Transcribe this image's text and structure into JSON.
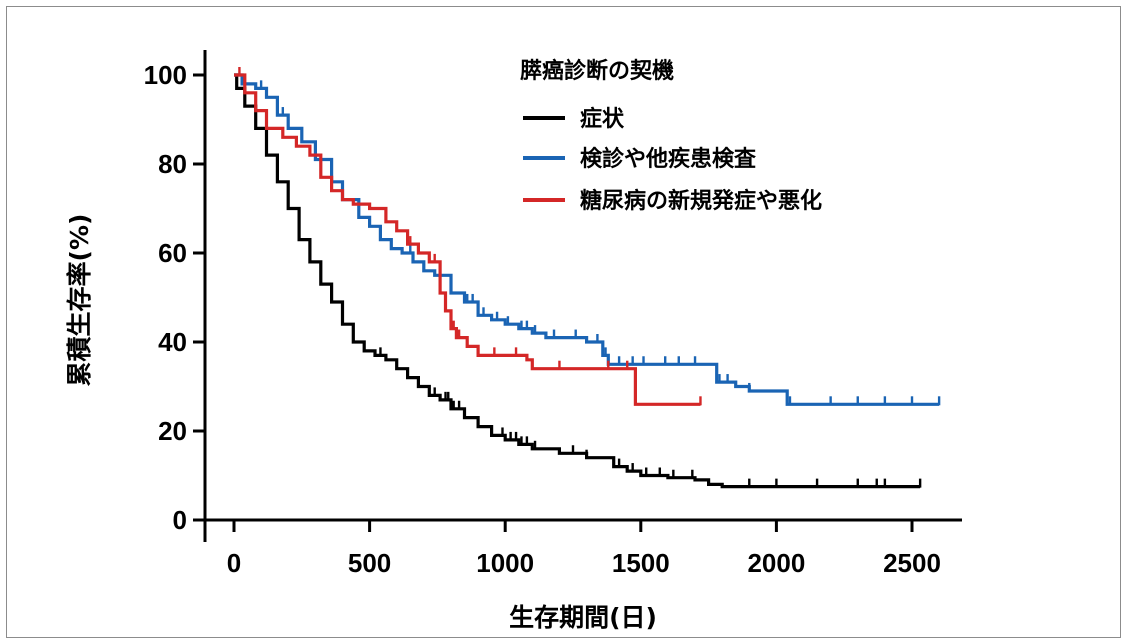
{
  "chart_data": {
    "type": "line",
    "subtype": "kaplan-meier survival curve",
    "xlabel": "生存期間(日)",
    "ylabel": "累積生存率(%)",
    "xlim": [
      -60,
      2680
    ],
    "ylim": [
      0,
      105
    ],
    "x_ticks": [
      0,
      500,
      1000,
      1500,
      2000,
      2500
    ],
    "y_ticks": [
      0,
      20,
      40,
      60,
      80,
      100
    ],
    "x_tick_labels": [
      "0",
      "500",
      "1000",
      "1500",
      "2000",
      "2500"
    ],
    "y_tick_labels": [
      "0",
      "20",
      "40",
      "60",
      "80",
      "100"
    ],
    "grid": false,
    "legend": {
      "title": "膵癌診断の契機",
      "position": "top-right"
    },
    "series": [
      {
        "name": "症状",
        "color": "#000000",
        "points": [
          [
            0,
            100
          ],
          [
            10,
            97
          ],
          [
            40,
            93
          ],
          [
            80,
            88
          ],
          [
            120,
            82
          ],
          [
            160,
            76
          ],
          [
            200,
            70
          ],
          [
            240,
            63
          ],
          [
            280,
            58
          ],
          [
            320,
            53
          ],
          [
            360,
            49
          ],
          [
            400,
            44
          ],
          [
            440,
            40
          ],
          [
            480,
            38
          ],
          [
            520,
            37
          ],
          [
            560,
            36
          ],
          [
            600,
            34
          ],
          [
            640,
            32
          ],
          [
            680,
            30
          ],
          [
            720,
            28
          ],
          [
            760,
            27
          ],
          [
            800,
            25
          ],
          [
            850,
            23
          ],
          [
            900,
            21
          ],
          [
            950,
            19
          ],
          [
            1000,
            18
          ],
          [
            1050,
            17
          ],
          [
            1100,
            16
          ],
          [
            1200,
            15
          ],
          [
            1300,
            14
          ],
          [
            1400,
            12
          ],
          [
            1450,
            11
          ],
          [
            1500,
            10
          ],
          [
            1600,
            9.5
          ],
          [
            1700,
            9
          ],
          [
            1750,
            8
          ],
          [
            1800,
            7.5
          ],
          [
            2000,
            7.5
          ],
          [
            2300,
            7.5
          ],
          [
            2530,
            7.5
          ]
        ],
        "censor_x": [
          540,
          740,
          780,
          790,
          810,
          830,
          990,
          1020,
          1040,
          1060,
          1080,
          1110,
          1250,
          1300,
          1420,
          1470,
          1520,
          1570,
          1620,
          1690,
          1900,
          2000,
          2150,
          2300,
          2370,
          2400,
          2530
        ]
      },
      {
        "name": "検診や他疾患検査",
        "color": "#1a64b4",
        "points": [
          [
            0,
            100
          ],
          [
            30,
            98
          ],
          [
            80,
            97
          ],
          [
            120,
            95
          ],
          [
            160,
            91
          ],
          [
            200,
            88
          ],
          [
            250,
            85
          ],
          [
            300,
            81
          ],
          [
            360,
            76
          ],
          [
            400,
            72
          ],
          [
            460,
            68
          ],
          [
            500,
            66
          ],
          [
            540,
            63
          ],
          [
            580,
            61
          ],
          [
            620,
            60
          ],
          [
            660,
            58
          ],
          [
            700,
            56
          ],
          [
            740,
            55
          ],
          [
            800,
            51
          ],
          [
            850,
            49
          ],
          [
            900,
            46
          ],
          [
            950,
            45
          ],
          [
            1000,
            44
          ],
          [
            1050,
            43
          ],
          [
            1100,
            42
          ],
          [
            1150,
            41
          ],
          [
            1200,
            41
          ],
          [
            1300,
            40
          ],
          [
            1360,
            37
          ],
          [
            1380,
            35
          ],
          [
            1500,
            35
          ],
          [
            1700,
            35
          ],
          [
            1780,
            31
          ],
          [
            1850,
            30
          ],
          [
            1900,
            29
          ],
          [
            2000,
            29
          ],
          [
            2040,
            26
          ],
          [
            2200,
            26
          ],
          [
            2400,
            26
          ],
          [
            2600,
            26
          ]
        ],
        "censor_x": [
          30,
          100,
          180,
          360,
          650,
          700,
          760,
          860,
          880,
          920,
          970,
          1010,
          1060,
          1080,
          1110,
          1180,
          1260,
          1340,
          1370,
          1420,
          1470,
          1510,
          1590,
          1640,
          1700,
          1790,
          1820,
          1900,
          2050,
          2200,
          2300,
          2400,
          2500,
          2600
        ]
      },
      {
        "name": "糖尿病の新規発症や悪化",
        "color": "#d42727",
        "points": [
          [
            0,
            100
          ],
          [
            40,
            96
          ],
          [
            80,
            92
          ],
          [
            120,
            88
          ],
          [
            180,
            86
          ],
          [
            230,
            84
          ],
          [
            280,
            82
          ],
          [
            320,
            77
          ],
          [
            360,
            74
          ],
          [
            400,
            72
          ],
          [
            440,
            71
          ],
          [
            500,
            70
          ],
          [
            560,
            67
          ],
          [
            600,
            65
          ],
          [
            640,
            62
          ],
          [
            680,
            60
          ],
          [
            720,
            58
          ],
          [
            760,
            51
          ],
          [
            780,
            47
          ],
          [
            800,
            43
          ],
          [
            820,
            41
          ],
          [
            860,
            39
          ],
          [
            900,
            37
          ],
          [
            1000,
            37
          ],
          [
            1080,
            36
          ],
          [
            1100,
            34
          ],
          [
            1200,
            34
          ],
          [
            1300,
            34
          ],
          [
            1460,
            34
          ],
          [
            1480,
            26
          ],
          [
            1720,
            26
          ]
        ],
        "censor_x": [
          20,
          650,
          740,
          810,
          830,
          900,
          960,
          1040,
          1200,
          1380,
          1450,
          1720
        ]
      }
    ]
  }
}
